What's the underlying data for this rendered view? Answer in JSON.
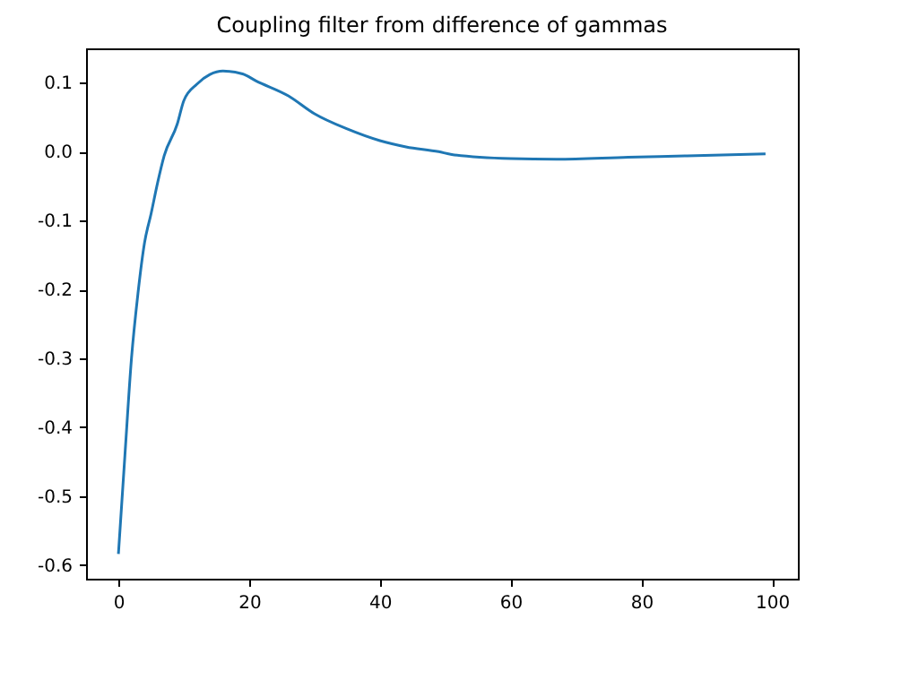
{
  "chart_data": {
    "type": "line",
    "title": "Coupling filter from difference of gammas",
    "x": [
      0,
      1,
      2,
      3,
      4,
      5,
      6,
      7,
      9,
      10,
      12,
      14,
      16,
      19,
      21,
      26,
      30,
      35,
      40,
      44,
      49,
      51,
      60,
      67,
      78,
      87,
      99
    ],
    "series": [
      {
        "color": "#1f77b4",
        "values": [
          -0.584,
          -0.44,
          -0.3,
          -0.205,
          -0.132,
          -0.09,
          -0.045,
          -0.006,
          0.04,
          0.074,
          0.098,
          0.112,
          0.117,
          0.113,
          0.103,
          0.081,
          0.055,
          0.033,
          0.016,
          0.007,
          0.0,
          -0.004,
          -0.01,
          -0.011,
          -0.008,
          -0.006,
          -0.003
        ]
      }
    ],
    "xlim": [
      -4.95,
      103.95
    ],
    "xticks": [
      0,
      20,
      40,
      60,
      80,
      100
    ],
    "ylim": [
      -0.62,
      0.15
    ],
    "yticks": [
      -0.6,
      -0.5,
      -0.4,
      -0.3,
      -0.2,
      -0.1,
      {
        "value": 0,
        "label": "0.0"
      },
      0.1
    ],
    "grid": false
  }
}
